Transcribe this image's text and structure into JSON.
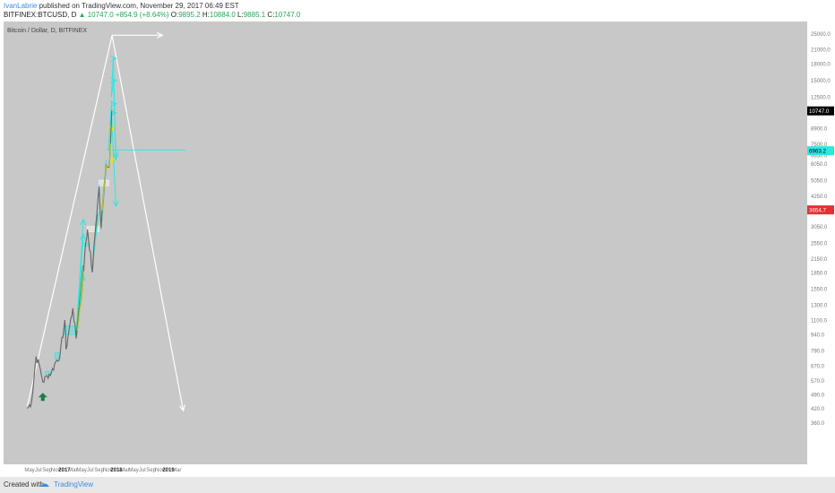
{
  "header": {
    "author": "IvanLabrie",
    "published": "published on TradingView.com, November 29, 2017 06:49 EST",
    "symbol": "BITFINEX:BTCUSD, D",
    "last": "10747.0",
    "change": "+854.9 (+8.64%)",
    "o_label": "O:",
    "o_value": "9895.2",
    "h_label": "H:",
    "h_value": "10884.0",
    "l_label": "L:",
    "l_value": "9885.1",
    "c_label": "C:",
    "c_value": "10747.0"
  },
  "chart_title": "Bitcoin / Dollar, D, BITFINEX",
  "footer": {
    "created_with": "Created with",
    "brand": "TradingView"
  },
  "colors": {
    "background": "#c8c8c8",
    "candles": "#666666",
    "cyan": "#2ee6e6",
    "yellow": "#e6e600",
    "green": "#3ba84a",
    "white_projection": "#ffffff",
    "last_price_label": "#000000",
    "level_label_red": "#e33030",
    "level_label_cyan": "#2ee6e6",
    "arrow_marker": "#1f7a4a"
  },
  "chart_data": {
    "type": "line",
    "title": "Bitcoin / Dollar, D, BITFINEX",
    "xlabel": "",
    "ylabel": "",
    "y_scale": "log",
    "x_ticks": [
      "May",
      "Jul",
      "Sep",
      "Nov",
      "2017",
      "Mar",
      "May",
      "Jul",
      "Sep",
      "Nov",
      "2018",
      "Mar",
      "May",
      "Jul",
      "Sep",
      "Nov",
      "2019",
      "Mar"
    ],
    "y_ticks": [
      "29000.0",
      "25000.0",
      "21000.0",
      "18000.0",
      "15000.0",
      "12500.0",
      "10747.0",
      "8900.0",
      "7500.0",
      "6650.0",
      "6050.0",
      "5050.0",
      "4250.0",
      "3654.7",
      "3050.0",
      "2550.0",
      "2150.0",
      "1850.0",
      "1550.0",
      "1300.0",
      "1100.0",
      "940.0",
      "790.0",
      "670.0",
      "570.0",
      "490.0",
      "420.0",
      "360.0"
    ],
    "price_labels": [
      {
        "value": "10747.0",
        "kind": "last"
      },
      {
        "value": "6963.2",
        "kind": "cyan-level"
      },
      {
        "value": "3654.7",
        "kind": "red-level"
      }
    ],
    "series": [
      {
        "name": "BTCUSD",
        "x": [
          "2016-04-15",
          "2016-05-15",
          "2016-06-16",
          "2016-07-15",
          "2016-08-02",
          "2016-09-01",
          "2016-10-01",
          "2016-11-01",
          "2016-12-01",
          "2017-01-04",
          "2017-01-12",
          "2017-02-01",
          "2017-03-01",
          "2017-03-24",
          "2017-04-15",
          "2017-05-01",
          "2017-05-24",
          "2017-06-12",
          "2017-07-16",
          "2017-08-01",
          "2017-09-01",
          "2017-09-15",
          "2017-10-01",
          "2017-10-20",
          "2017-11-12",
          "2017-11-29"
        ],
        "values": [
          420,
          450,
          740,
          650,
          560,
          600,
          620,
          700,
          750,
          1100,
          800,
          980,
          1250,
          900,
          1200,
          1400,
          2300,
          2950,
          1850,
          2700,
          4700,
          3000,
          4300,
          6000,
          5800,
          10747
        ]
      }
    ],
    "annotations": {
      "projection_peak": "Dec 2017 ~25000",
      "projection_end": "Mar 2019 ~410",
      "horizontal_target": "~25000",
      "level_line": "6963.2"
    },
    "ylim": [
      360,
      29000
    ],
    "grid": false
  }
}
